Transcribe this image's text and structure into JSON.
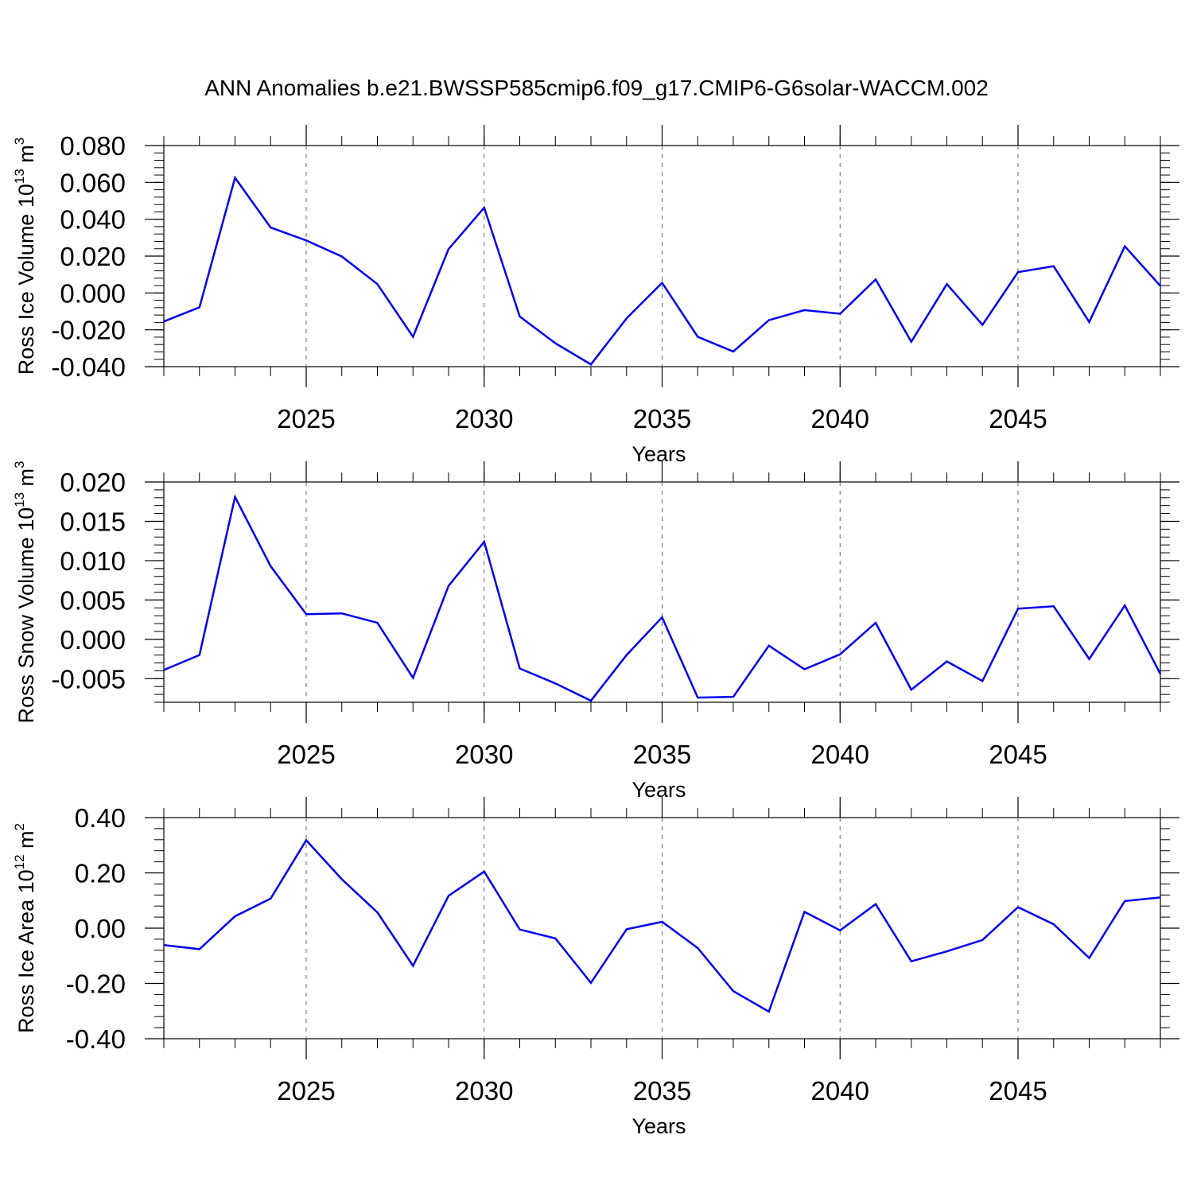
{
  "title": "ANN Anomalies b.e21.BWSSP585cmip6.f09_g17.CMIP6-G6solar-WACCM.002",
  "line_color": "#0000ee",
  "chart_data": [
    {
      "type": "line",
      "xlabel": "Years",
      "ylabel": {
        "main": "Ross Ice Volume 10",
        "sup": "13",
        "unit": " m",
        "unit_sup": "3"
      },
      "xlim": [
        2021,
        2049
      ],
      "ylim": [
        -0.04,
        0.08
      ],
      "xticks": [
        "2025",
        "2030",
        "2035",
        "2040",
        "2045"
      ],
      "yticks": [
        "0.080",
        "0.060",
        "0.040",
        "0.020",
        "0.000",
        "-0.020",
        "-0.040"
      ],
      "x": [
        2021,
        2022,
        2023,
        2024,
        2025,
        2026,
        2027,
        2028,
        2029,
        2030,
        2031,
        2032,
        2033,
        2034,
        2035,
        2036,
        2037,
        2038,
        2039,
        2040,
        2041,
        2042,
        2043,
        2044,
        2045,
        2046,
        2047,
        2048,
        2049
      ],
      "values": [
        -0.0155,
        -0.0078,
        0.0625,
        0.0355,
        0.0285,
        0.0198,
        0.0048,
        -0.0238,
        0.0238,
        0.0463,
        -0.0128,
        -0.0273,
        -0.0388,
        -0.0138,
        0.0055,
        -0.0238,
        -0.0318,
        -0.0148,
        -0.0093,
        -0.0113,
        0.0073,
        -0.0265,
        0.0048,
        -0.0173,
        0.0113,
        0.0145,
        -0.0158,
        0.0253,
        0.0038
      ]
    },
    {
      "type": "line",
      "xlabel": "Years",
      "ylabel": {
        "main": "Ross Snow Volume 10",
        "sup": "13",
        "unit": " m",
        "unit_sup": "3"
      },
      "xlim": [
        2021,
        2049
      ],
      "ylim": [
        -0.008,
        0.02
      ],
      "xticks": [
        "2025",
        "2030",
        "2035",
        "2040",
        "2045"
      ],
      "yticks": [
        "0.020",
        "0.015",
        "0.010",
        "0.005",
        "0.000",
        "-0.005"
      ],
      "x": [
        2021,
        2022,
        2023,
        2024,
        2025,
        2026,
        2027,
        2028,
        2029,
        2030,
        2031,
        2032,
        2033,
        2034,
        2035,
        2036,
        2037,
        2038,
        2039,
        2040,
        2041,
        2042,
        2043,
        2044,
        2045,
        2046,
        2047,
        2048,
        2049
      ],
      "values": [
        -0.0039,
        -0.002,
        0.0181,
        0.0093,
        0.0032,
        0.0033,
        0.0021,
        -0.0049,
        0.0068,
        0.0124,
        -0.0037,
        -0.0056,
        -0.0078,
        -0.002,
        0.0028,
        -0.0074,
        -0.0073,
        -0.0008,
        -0.0038,
        -0.0019,
        0.0021,
        -0.0064,
        -0.0028,
        -0.0053,
        0.0039,
        0.0042,
        -0.0025,
        0.0043,
        -0.0044
      ]
    },
    {
      "type": "line",
      "xlabel": "Years",
      "ylabel": {
        "main": "Ross Ice Area 10",
        "sup": "12",
        "unit": " m",
        "unit_sup": "2"
      },
      "xlim": [
        2021,
        2049
      ],
      "ylim": [
        -0.4,
        0.4
      ],
      "xticks": [
        "2025",
        "2030",
        "2035",
        "2040",
        "2045"
      ],
      "yticks": [
        "0.40",
        "0.20",
        "0.00",
        "-0.20",
        "-0.40"
      ],
      "x": [
        2021,
        2022,
        2023,
        2024,
        2025,
        2026,
        2027,
        2028,
        2029,
        2030,
        2031,
        2032,
        2033,
        2034,
        2035,
        2036,
        2037,
        2038,
        2039,
        2040,
        2041,
        2042,
        2043,
        2044,
        2045,
        2046,
        2047,
        2048,
        2049
      ],
      "values": [
        -0.061,
        -0.076,
        0.043,
        0.107,
        0.318,
        0.177,
        0.057,
        -0.136,
        0.117,
        0.205,
        -0.005,
        -0.037,
        -0.198,
        -0.004,
        0.023,
        -0.072,
        -0.228,
        -0.302,
        0.059,
        -0.008,
        0.087,
        -0.12,
        -0.084,
        -0.043,
        0.076,
        0.014,
        -0.108,
        0.098,
        0.111
      ]
    }
  ]
}
